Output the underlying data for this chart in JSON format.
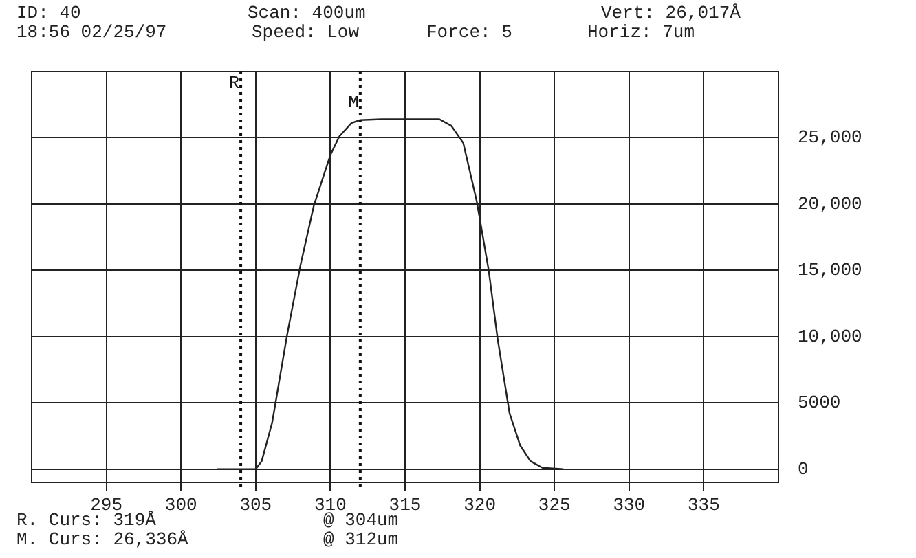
{
  "chart_data": {
    "type": "line",
    "annotations": [
      "ID: 40",
      "Scan: 400um",
      "Vert: 26,017Å",
      "18:56 02/25/97",
      "Speed: Low",
      "Force: 5",
      "Horiz: 7um",
      "R. Curs: 319Å",
      "@ 304um",
      "M. Curs: 26,336Å",
      "@ 312um"
    ],
    "series": [
      {
        "color": "#222222",
        "x": [
          302.4,
          305.0,
          305.4,
          306.1,
          307.1,
          308.0,
          308.9,
          310.0,
          310.6,
          311.4,
          312.0,
          313.4,
          317.3,
          318.1,
          318.9,
          319.8,
          320.6,
          321.2,
          322.0,
          322.7,
          323.4,
          324.2,
          325.6
        ],
        "values": [
          0,
          0,
          600,
          3500,
          10100,
          15400,
          19900,
          23700,
          25100,
          26100,
          26336,
          26400,
          26400,
          25900,
          24600,
          20200,
          15000,
          9800,
          4200,
          1800,
          600,
          100,
          0
        ]
      }
    ],
    "xlim": [
      290,
      340
    ],
    "xticks": [
      295,
      300,
      305,
      310,
      315,
      320,
      325,
      330,
      335
    ],
    "ylim": [
      -1000,
      30000
    ],
    "yticks": [
      0,
      5000,
      {
        "value": 10000,
        "label": "10,000"
      },
      {
        "value": 15000,
        "label": "15,000"
      },
      {
        "value": 20000,
        "label": "20,000"
      },
      {
        "value": 25000,
        "label": "25,000"
      }
    ],
    "ref_lines": [
      {
        "axis": "x",
        "value": 304,
        "label": "R",
        "color": "#111111",
        "line_style": "dotted"
      },
      {
        "axis": "x",
        "value": 312,
        "label": "M",
        "color": "#111111",
        "line_style": "dotted"
      }
    ],
    "grid": true,
    "legend": false,
    "marker": "none",
    "line_style": "solid"
  }
}
